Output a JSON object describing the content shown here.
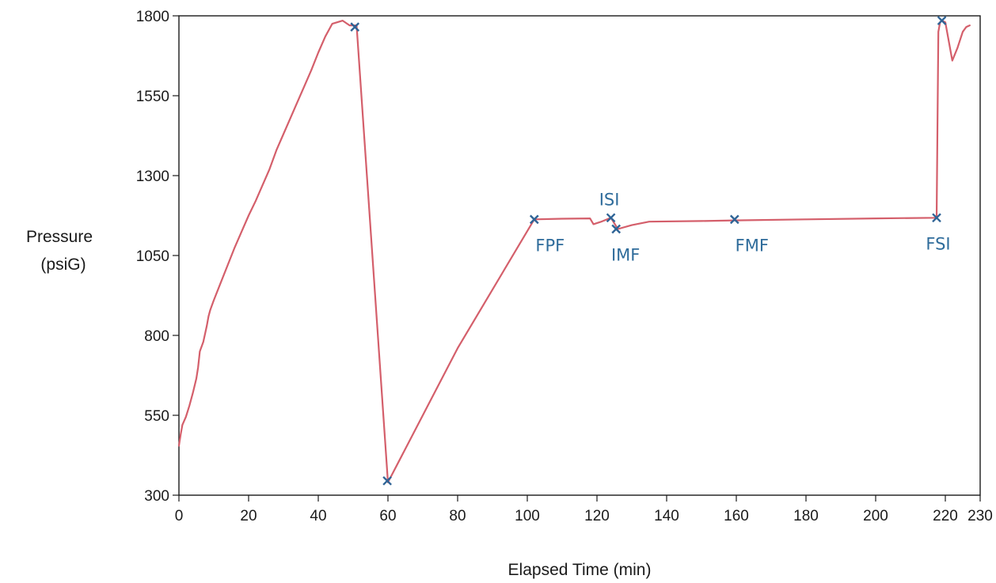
{
  "chart_data": {
    "type": "line",
    "title": "",
    "xlabel": "Elapsed Time (min)",
    "ylabel": [
      "Pressure",
      "(psiG)"
    ],
    "xlim": [
      0,
      230
    ],
    "ylim": [
      300,
      1800
    ],
    "grid": false,
    "legend": "none",
    "x_ticks": [
      {
        "value": 0,
        "label": "0"
      },
      {
        "value": 20,
        "label": "20"
      },
      {
        "value": 40,
        "label": "40"
      },
      {
        "value": 60,
        "label": "60"
      },
      {
        "value": 80,
        "label": "80"
      },
      {
        "value": 100,
        "label": "100"
      },
      {
        "value": 120,
        "label": "120"
      },
      {
        "value": 140,
        "label": "140"
      },
      {
        "value": 160,
        "label": "160"
      },
      {
        "value": 180,
        "label": "180"
      },
      {
        "value": 200,
        "label": "200"
      },
      {
        "value": 220,
        "label": "220"
      },
      {
        "value": 230,
        "label": "230"
      }
    ],
    "y_ticks": [
      {
        "value": 300,
        "label": "300"
      },
      {
        "value": 550,
        "label": "550"
      },
      {
        "value": 800,
        "label": "800"
      },
      {
        "value": 1050,
        "label": "1050"
      },
      {
        "value": 1300,
        "label": "1300"
      },
      {
        "value": 1550,
        "label": "1550"
      },
      {
        "value": 1800,
        "label": "1800"
      }
    ],
    "colors": {
      "line": "#d45f6b",
      "marker": "#2f6496",
      "marker_label": "#2f6c9b",
      "axis": "#1a1a1a"
    },
    "series": [
      {
        "values": [
          [
            0,
            455
          ],
          [
            0.5,
            490
          ],
          [
            1,
            520
          ],
          [
            2,
            545
          ],
          [
            3,
            580
          ],
          [
            4,
            620
          ],
          [
            5,
            665
          ],
          [
            5.5,
            700
          ],
          [
            6,
            750
          ],
          [
            7,
            780
          ],
          [
            8,
            830
          ],
          [
            8.5,
            860
          ],
          [
            9,
            880
          ],
          [
            10,
            910
          ],
          [
            12,
            965
          ],
          [
            14,
            1020
          ],
          [
            16,
            1075
          ],
          [
            18,
            1125
          ],
          [
            20,
            1175
          ],
          [
            22,
            1220
          ],
          [
            24,
            1270
          ],
          [
            26,
            1320
          ],
          [
            28,
            1380
          ],
          [
            30,
            1430
          ],
          [
            32,
            1480
          ],
          [
            34,
            1530
          ],
          [
            36,
            1580
          ],
          [
            38,
            1630
          ],
          [
            40,
            1685
          ],
          [
            42,
            1735
          ],
          [
            44,
            1775
          ],
          [
            47,
            1785
          ],
          [
            49,
            1770
          ],
          [
            51,
            1770
          ],
          [
            60,
            340
          ],
          [
            80,
            760
          ],
          [
            102,
            1163
          ],
          [
            110,
            1165
          ],
          [
            118,
            1166
          ],
          [
            119,
            1148
          ],
          [
            121,
            1155
          ],
          [
            124,
            1168
          ],
          [
            126,
            1133
          ],
          [
            130,
            1145
          ],
          [
            135,
            1156
          ],
          [
            150,
            1158
          ],
          [
            159.5,
            1160
          ],
          [
            180,
            1163
          ],
          [
            200,
            1166
          ],
          [
            217.5,
            1168
          ],
          [
            218,
            1750
          ],
          [
            218.5,
            1780
          ],
          [
            219,
            1785
          ],
          [
            220,
            1780
          ],
          [
            221,
            1720
          ],
          [
            222,
            1660
          ],
          [
            223.5,
            1700
          ],
          [
            225,
            1750
          ],
          [
            226,
            1765
          ],
          [
            227,
            1770
          ]
        ]
      }
    ],
    "markers": [
      {
        "x": 50.5,
        "y": 1765,
        "label": "",
        "label_position": "none"
      },
      {
        "x": 59.8,
        "y": 345,
        "label": "",
        "label_position": "none"
      },
      {
        "x": 102,
        "y": 1163,
        "label": "FPF",
        "label_position": "below"
      },
      {
        "x": 124,
        "y": 1168,
        "label": "ISI",
        "label_position": "above"
      },
      {
        "x": 125.5,
        "y": 1133,
        "label": "IMF",
        "label_position": "below"
      },
      {
        "x": 159.5,
        "y": 1163,
        "label": "FMF",
        "label_position": "below"
      },
      {
        "x": 217.5,
        "y": 1168,
        "label": "FSI",
        "label_position": "below"
      },
      {
        "x": 219,
        "y": 1785,
        "label": "",
        "label_position": "none"
      }
    ]
  }
}
